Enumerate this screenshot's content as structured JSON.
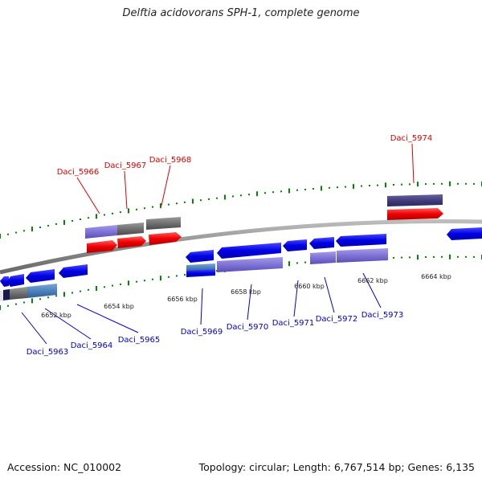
{
  "title": "Delftia acidovorans SPH-1, complete genome",
  "footer": {
    "accession": "Accession: NC_010002",
    "summary": "Topology: circular; Length: 6,767,514 bp; Genes: 6,135"
  },
  "colors": {
    "top_label": "#dd0000",
    "bottom_label": "#0000cc",
    "tick": "#008800",
    "backbone": "#888888"
  },
  "scale_labels": [
    "6652 kbp",
    "6654 kbp",
    "6656 kbp",
    "6658 kbp",
    "6660 kbp",
    "6662 kbp",
    "6664 kbp"
  ],
  "top_labels": [
    "Daci_5966",
    "Daci_5967",
    "Daci_5968",
    "Daci_5974"
  ],
  "bottom_labels": [
    "Daci_5963",
    "Daci_5964",
    "Daci_5965",
    "Daci_5969",
    "Daci_5970",
    "Daci_5971",
    "Daci_5972",
    "Daci_5973"
  ]
}
